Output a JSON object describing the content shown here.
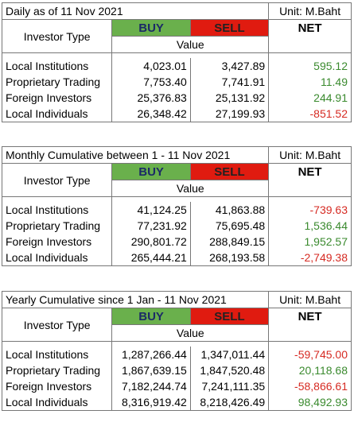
{
  "headers": {
    "investor_type": "Investor Type",
    "buy": "BUY",
    "sell": "SELL",
    "net": "NET",
    "value": "Value"
  },
  "tables": [
    {
      "title": "Daily as of 11 Nov 2021",
      "unit": "Unit: M.Baht",
      "rows": [
        {
          "type": "Local Institutions",
          "buy": "4,023.01",
          "sell": "3,427.89",
          "net": "595.12",
          "net_sign": "pos"
        },
        {
          "type": "Proprietary Trading",
          "buy": "7,753.40",
          "sell": "7,741.91",
          "net": "11.49",
          "net_sign": "pos"
        },
        {
          "type": "Foreign Investors",
          "buy": "25,376.83",
          "sell": "25,131.92",
          "net": "244.91",
          "net_sign": "pos"
        },
        {
          "type": "Local Individuals",
          "buy": "26,348.42",
          "sell": "27,199.93",
          "net": "-851.52",
          "net_sign": "neg"
        }
      ]
    },
    {
      "title": "Monthly Cumulative between 1 - 11 Nov 2021",
      "unit": "Unit: M.Baht",
      "rows": [
        {
          "type": "Local Institutions",
          "buy": "41,124.25",
          "sell": "41,863.88",
          "net": "-739.63",
          "net_sign": "neg"
        },
        {
          "type": "Proprietary Trading",
          "buy": "77,231.92",
          "sell": "75,695.48",
          "net": "1,536.44",
          "net_sign": "pos"
        },
        {
          "type": "Foreign Investors",
          "buy": "290,801.72",
          "sell": "288,849.15",
          "net": "1,952.57",
          "net_sign": "pos"
        },
        {
          "type": "Local Individuals",
          "buy": "265,444.21",
          "sell": "268,193.58",
          "net": "-2,749.38",
          "net_sign": "neg"
        }
      ]
    },
    {
      "title": "Yearly Cumulative since 1 Jan - 11 Nov 2021",
      "unit": "Unit: M.Baht",
      "rows": [
        {
          "type": "Local Institutions",
          "buy": "1,287,266.44",
          "sell": "1,347,011.44",
          "net": "-59,745.00",
          "net_sign": "neg"
        },
        {
          "type": "Proprietary Trading",
          "buy": "1,867,639.15",
          "sell": "1,847,520.48",
          "net": "20,118.68",
          "net_sign": "pos"
        },
        {
          "type": "Foreign Investors",
          "buy": "7,182,244.74",
          "sell": "7,241,111.35",
          "net": "-58,866.61",
          "net_sign": "neg"
        },
        {
          "type": "Local Individuals",
          "buy": "8,316,919.42",
          "sell": "8,218,426.49",
          "net": "98,492.93",
          "net_sign": "pos"
        }
      ]
    }
  ]
}
